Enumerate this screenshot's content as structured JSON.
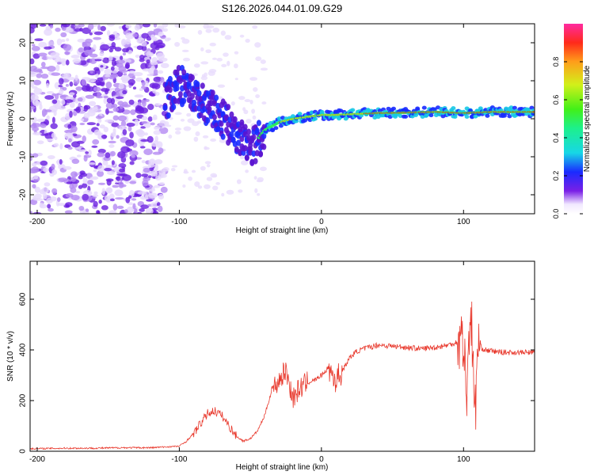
{
  "title": "S126.2026.044.01.09.G29",
  "colorbar": {
    "label": "Normalized spectral amplitude",
    "ticks": [
      "0.0",
      "0.2",
      "0.4",
      "0.6",
      "0.8"
    ],
    "tick_values": [
      0.0,
      0.2,
      0.4,
      0.6,
      0.8
    ]
  },
  "chart_data": [
    {
      "type": "heatmap",
      "title": "S126.2026.044.01.09.G29",
      "xlabel": "Height of straight line (km)",
      "ylabel": "Frequency (Hz)",
      "xlim": [
        -205,
        150
      ],
      "ylim": [
        -25,
        25
      ],
      "xticks": [
        -200,
        -100,
        0,
        100
      ],
      "xtick_labels": [
        "-200",
        "-100",
        "0",
        "100"
      ],
      "yticks": [
        -20,
        -10,
        0,
        10,
        20
      ],
      "ytick_labels": [
        "-20",
        "-10",
        "0",
        "10",
        "20"
      ],
      "colorbar_range": [
        0,
        1
      ],
      "colorbar_label": "Normalized spectral amplitude",
      "ridge": {
        "x": [
          -205,
          -120,
          -100,
          -90,
          -80,
          -70,
          -60,
          -50,
          -40,
          -30,
          -20,
          -10,
          0,
          10,
          20,
          40,
          60,
          80,
          100,
          120,
          150
        ],
        "freq": [
          0,
          0,
          9,
          6,
          3,
          0,
          -4,
          -8,
          -3,
          -1,
          0,
          0.5,
          1,
          1,
          1.2,
          1.5,
          1.6,
          1.8,
          1.5,
          1.8,
          1.8
        ]
      }
    },
    {
      "type": "line",
      "xlabel": "Height of straight line (km)",
      "ylabel": "SNR (10 * v/v)",
      "xlim": [
        -205,
        150
      ],
      "ylim": [
        0,
        750
      ],
      "xticks": [
        -200,
        -100,
        0,
        100
      ],
      "xtick_labels": [
        "-200",
        "-100",
        "0",
        "100"
      ],
      "yticks": [
        0,
        200,
        400,
        600
      ],
      "ytick_labels": [
        "0",
        "200",
        "400",
        "600"
      ],
      "series": [
        {
          "name": "SNR",
          "color": "#e8382c",
          "x": [
            -205,
            -180,
            -160,
            -140,
            -120,
            -100,
            -95,
            -90,
            -85,
            -80,
            -75,
            -70,
            -65,
            -60,
            -55,
            -50,
            -45,
            -40,
            -35,
            -30,
            -25,
            -20,
            -15,
            -10,
            -5,
            0,
            5,
            10,
            15,
            20,
            25,
            30,
            40,
            50,
            60,
            70,
            80,
            90,
            95,
            100,
            102,
            105,
            108,
            110,
            115,
            120,
            130,
            140,
            150
          ],
          "values": [
            10,
            12,
            12,
            14,
            14,
            20,
            40,
            70,
            110,
            150,
            160,
            140,
            100,
            60,
            40,
            50,
            80,
            140,
            240,
            280,
            320,
            210,
            250,
            270,
            280,
            300,
            330,
            280,
            320,
            370,
            395,
            405,
            420,
            415,
            410,
            405,
            410,
            420,
            430,
            450,
            200,
            600,
            120,
            420,
            400,
            395,
            390,
            390,
            390
          ]
        }
      ]
    }
  ]
}
